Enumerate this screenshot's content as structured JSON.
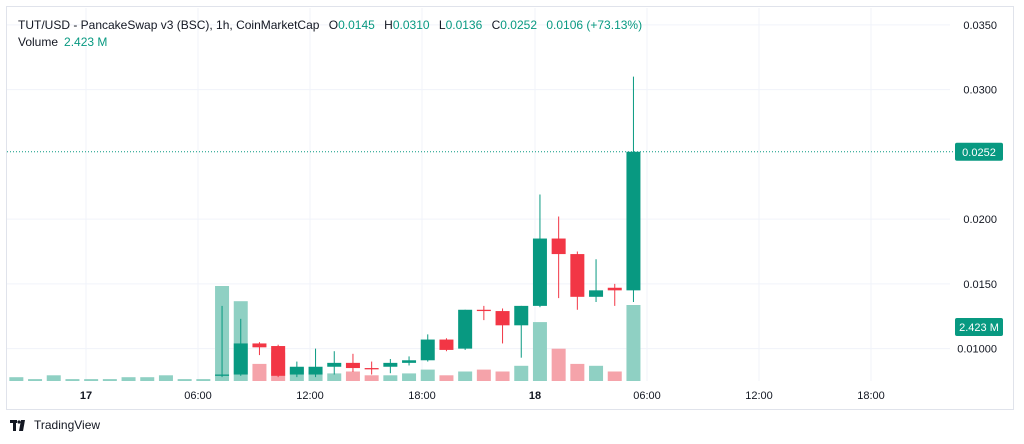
{
  "legend": {
    "symbol": "TUT/USD - PancakeSwap v3 (BSC), 1h, CoinMarketCap",
    "open_label": "O",
    "open": "0.0145",
    "high_label": "H",
    "high": "0.0310",
    "low_label": "L",
    "low": "0.0136",
    "close_label": "C",
    "close": "0.0252",
    "change": "0.0106 (+73.13%)",
    "volume_label": "Volume",
    "volume": "2.423 M"
  },
  "footer": {
    "brand": "TradingView"
  },
  "colors": {
    "up": "#089981",
    "down": "#f23645",
    "up_volume": "#8fd0c3",
    "down_volume": "#f5a3aa",
    "grid": "#f0f3fa",
    "price_line": "#089981"
  },
  "chart_data": {
    "type": "candlestick",
    "timeframe": "1h",
    "y_axis": {
      "ticks": [
        "0.0350",
        "0.0300",
        "0.0200",
        "0.0150",
        "0.01000"
      ],
      "range": [
        0.0075,
        0.0363
      ]
    },
    "x_axis": {
      "ticks": [
        "17",
        "06:00",
        "12:00",
        "18:00",
        "18",
        "06:00",
        "12:00",
        "18:00"
      ]
    },
    "last_price_label": "0.0252",
    "last_volume_label": "2.423 M",
    "candles": [
      {
        "x": 11.5,
        "o": 0.0079,
        "h": 0.0133,
        "l": 0.0078,
        "c": 0.008,
        "v": 0.5
      },
      {
        "x": 12.5,
        "o": 0.008,
        "h": 0.0123,
        "l": 0.0079,
        "c": 0.0104,
        "v": 0.42
      },
      {
        "x": 13.5,
        "o": 0.0104,
        "h": 0.0105,
        "l": 0.0095,
        "c": 0.0101,
        "v": 0.09
      },
      {
        "x": 14.5,
        "o": 0.0102,
        "h": 0.0103,
        "l": 0.0078,
        "c": 0.0079,
        "v": 0.15
      },
      {
        "x": 15.5,
        "o": 0.008,
        "h": 0.009,
        "l": 0.0078,
        "c": 0.0086,
        "v": 0.07
      },
      {
        "x": 16.5,
        "o": 0.008,
        "h": 0.01,
        "l": 0.0078,
        "c": 0.0086,
        "v": 0.05
      },
      {
        "x": 17.5,
        "o": 0.0086,
        "h": 0.0098,
        "l": 0.008,
        "c": 0.0089,
        "v": 0.04
      },
      {
        "x": 18.5,
        "o": 0.0089,
        "h": 0.0096,
        "l": 0.0082,
        "c": 0.0085,
        "v": 0.05
      },
      {
        "x": 19.5,
        "o": 0.0085,
        "h": 0.009,
        "l": 0.008,
        "c": 0.0084,
        "v": 0.03
      },
      {
        "x": 20.5,
        "o": 0.0086,
        "h": 0.0092,
        "l": 0.0081,
        "c": 0.0089,
        "v": 0.03
      },
      {
        "x": 21.5,
        "o": 0.0089,
        "h": 0.0094,
        "l": 0.0087,
        "c": 0.0091,
        "v": 0.04
      },
      {
        "x": 22.5,
        "o": 0.0091,
        "h": 0.0111,
        "l": 0.009,
        "c": 0.0107,
        "v": 0.06
      },
      {
        "x": 23.5,
        "o": 0.0107,
        "h": 0.0108,
        "l": 0.0098,
        "c": 0.0099,
        "v": 0.03
      },
      {
        "x": 24.5,
        "o": 0.01,
        "h": 0.013,
        "l": 0.0099,
        "c": 0.013,
        "v": 0.05
      },
      {
        "x": 25.5,
        "o": 0.013,
        "h": 0.0133,
        "l": 0.0122,
        "c": 0.0129,
        "v": 0.06
      },
      {
        "x": 26.5,
        "o": 0.0129,
        "h": 0.0131,
        "l": 0.0104,
        "c": 0.0118,
        "v": 0.05
      },
      {
        "x": 27.5,
        "o": 0.0118,
        "h": 0.0133,
        "l": 0.0093,
        "c": 0.0133,
        "v": 0.08
      },
      {
        "x": 28.5,
        "o": 0.0133,
        "h": 0.0219,
        "l": 0.0132,
        "c": 0.0185,
        "v": 0.31
      },
      {
        "x": 29.5,
        "o": 0.0185,
        "h": 0.0202,
        "l": 0.0139,
        "c": 0.0173,
        "v": 0.17
      },
      {
        "x": 30.5,
        "o": 0.0173,
        "h": 0.0175,
        "l": 0.013,
        "c": 0.014,
        "v": 0.09
      },
      {
        "x": 31.5,
        "o": 0.014,
        "h": 0.0169,
        "l": 0.0136,
        "c": 0.0145,
        "v": 0.08
      },
      {
        "x": 32.5,
        "o": 0.0147,
        "h": 0.015,
        "l": 0.0133,
        "c": 0.0145,
        "v": 0.05
      },
      {
        "x": 33.5,
        "o": 0.0145,
        "h": 0.031,
        "l": 0.0136,
        "c": 0.0252,
        "v": 0.4
      }
    ],
    "early_volume_bars": [
      {
        "x": 0.5,
        "v": 0.02
      },
      {
        "x": 1.5,
        "v": 0.01
      },
      {
        "x": 2.5,
        "v": 0.03
      },
      {
        "x": 3.5,
        "v": 0.01
      },
      {
        "x": 4.5,
        "v": 0.01
      },
      {
        "x": 5.5,
        "v": 0.01
      },
      {
        "x": 6.5,
        "v": 0.02
      },
      {
        "x": 7.5,
        "v": 0.02
      },
      {
        "x": 8.5,
        "v": 0.03
      },
      {
        "x": 9.5,
        "v": 0.01
      },
      {
        "x": 10.5,
        "v": 0.01
      }
    ]
  }
}
